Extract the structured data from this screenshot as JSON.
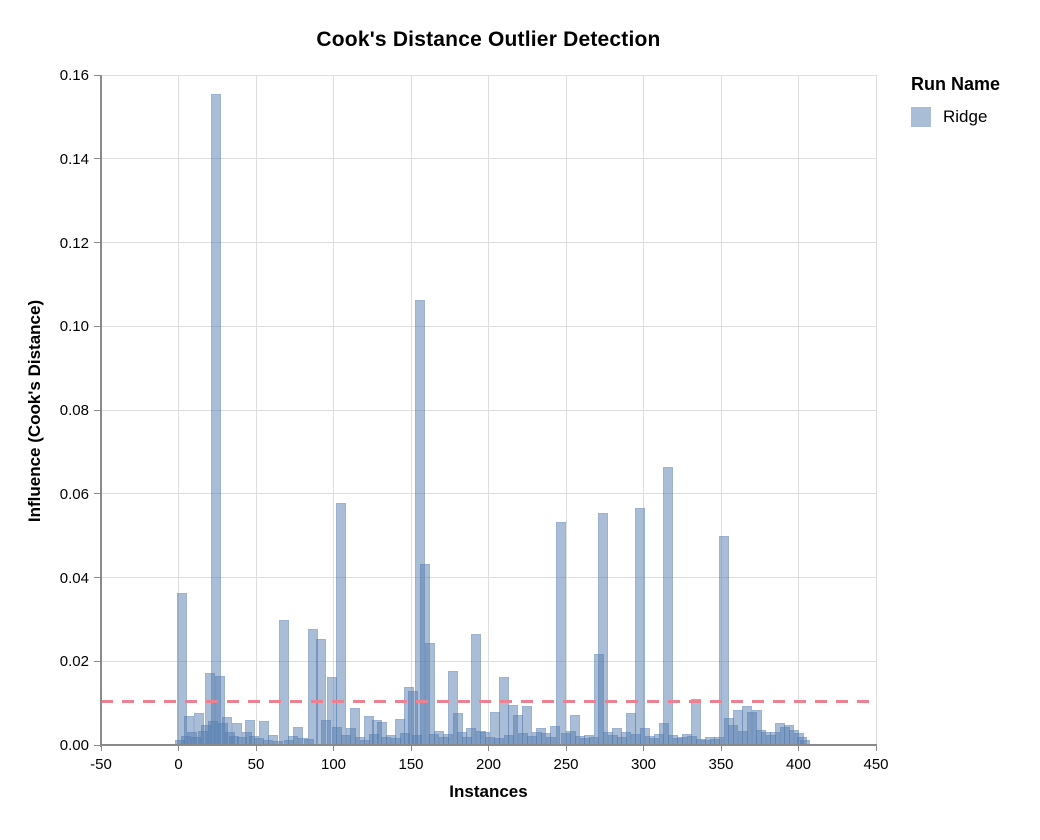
{
  "legend": {
    "title": "Run Name",
    "items": [
      {
        "label": "Ridge",
        "color": "rgba(83,123,173,0.5)"
      }
    ]
  },
  "colors": {
    "bar_fill": "rgba(83,123,173,0.5)",
    "single_bar_appearance": "#a9bcd7",
    "gridline": "#dedede",
    "axis_line": "#8a8a8a",
    "threshold": "#ec8191",
    "text": "#000000"
  },
  "chart_data": {
    "type": "bar",
    "title": "Cook's Distance Outlier Detection",
    "xlabel": "Instances",
    "ylabel": "Influence (Cook's Distance)",
    "xlim": [
      -50,
      450
    ],
    "ylim": [
      0,
      0.16
    ],
    "x_ticks": [
      -50,
      0,
      50,
      100,
      150,
      200,
      250,
      300,
      350,
      400,
      450
    ],
    "x_tick_labels": [
      "-50",
      "0",
      "50",
      "100",
      "150",
      "200",
      "250",
      "300",
      "350",
      "400",
      "450"
    ],
    "y_ticks": [
      0,
      0.02,
      0.04,
      0.06,
      0.08,
      0.1,
      0.12,
      0.14,
      0.16
    ],
    "y_tick_labels": [
      "0.00",
      "0.02",
      "0.04",
      "0.06",
      "0.08",
      "0.10",
      "0.12",
      "0.14",
      "0.16"
    ],
    "grid": true,
    "legend_position": "top-right",
    "threshold_line": {
      "y": 0.0103,
      "color": "#ec8191",
      "style": "dashed"
    },
    "series": [
      {
        "name": "Ridge",
        "color": "rgba(83,123,173,0.5)",
        "points": [
          [
            1,
            0.0012
          ],
          [
            2,
            0.0363
          ],
          [
            5,
            0.0021
          ],
          [
            7,
            0.007
          ],
          [
            9,
            0.003
          ],
          [
            11,
            0.0018
          ],
          [
            13,
            0.0077
          ],
          [
            16,
            0.0034
          ],
          [
            18,
            0.0048
          ],
          [
            20,
            0.0171
          ],
          [
            22,
            0.0058
          ],
          [
            24,
            0.1555
          ],
          [
            27,
            0.0164
          ],
          [
            29,
            0.0052
          ],
          [
            31,
            0.0067
          ],
          [
            33,
            0.003
          ],
          [
            36,
            0.0022
          ],
          [
            38,
            0.0052
          ],
          [
            41,
            0.0018
          ],
          [
            44,
            0.003
          ],
          [
            46,
            0.0059
          ],
          [
            49,
            0.0021
          ],
          [
            52,
            0.0017
          ],
          [
            55,
            0.0058
          ],
          [
            58,
            0.0012
          ],
          [
            61,
            0.0024
          ],
          [
            64,
            0.001
          ],
          [
            68,
            0.0298
          ],
          [
            71,
            0.0013
          ],
          [
            74,
            0.0021
          ],
          [
            77,
            0.0043
          ],
          [
            80,
            0.0017
          ],
          [
            84,
            0.0014
          ],
          [
            87,
            0.0277
          ],
          [
            92,
            0.0253
          ],
          [
            95,
            0.006
          ],
          [
            99,
            0.0163
          ],
          [
            102,
            0.0042
          ],
          [
            105,
            0.0578
          ],
          [
            108,
            0.0023
          ],
          [
            111,
            0.004
          ],
          [
            114,
            0.0088
          ],
          [
            117,
            0.002
          ],
          [
            120,
            0.0013
          ],
          [
            123,
            0.0069
          ],
          [
            126,
            0.0026
          ],
          [
            128,
            0.006
          ],
          [
            131,
            0.0055
          ],
          [
            134,
            0.0018
          ],
          [
            137,
            0.0023
          ],
          [
            140,
            0.0016
          ],
          [
            143,
            0.0062
          ],
          [
            146,
            0.0028
          ],
          [
            149,
            0.0139
          ],
          [
            151,
            0.013
          ],
          [
            154,
            0.0024
          ],
          [
            156,
            0.1062
          ],
          [
            159,
            0.0433
          ],
          [
            162,
            0.0243
          ],
          [
            165,
            0.0026
          ],
          [
            168,
            0.0034
          ],
          [
            171,
            0.002
          ],
          [
            174,
            0.0027
          ],
          [
            177,
            0.0176
          ],
          [
            180,
            0.0077
          ],
          [
            183,
            0.0031
          ],
          [
            186,
            0.0018
          ],
          [
            189,
            0.004
          ],
          [
            192,
            0.0265
          ],
          [
            195,
            0.0034
          ],
          [
            198,
            0.0032
          ],
          [
            201,
            0.002
          ],
          [
            204,
            0.008
          ],
          [
            207,
            0.0016
          ],
          [
            210,
            0.0163
          ],
          [
            213,
            0.0024
          ],
          [
            216,
            0.0095
          ],
          [
            219,
            0.0072
          ],
          [
            222,
            0.0028
          ],
          [
            225,
            0.0094
          ],
          [
            228,
            0.0022
          ],
          [
            231,
            0.0032
          ],
          [
            234,
            0.004
          ],
          [
            237,
            0.0028
          ],
          [
            240,
            0.002
          ],
          [
            243,
            0.0046
          ],
          [
            247,
            0.0533
          ],
          [
            250,
            0.0028
          ],
          [
            253,
            0.0034
          ],
          [
            256,
            0.0071
          ],
          [
            259,
            0.0022
          ],
          [
            262,
            0.0017
          ],
          [
            265,
            0.0024
          ],
          [
            268,
            0.002
          ],
          [
            271,
            0.0217
          ],
          [
            274,
            0.0554
          ],
          [
            277,
            0.003
          ],
          [
            280,
            0.0024
          ],
          [
            283,
            0.004
          ],
          [
            286,
            0.002
          ],
          [
            289,
            0.0032
          ],
          [
            292,
            0.0076
          ],
          [
            295,
            0.0026
          ],
          [
            298,
            0.0566
          ],
          [
            301,
            0.0041
          ],
          [
            304,
            0.0022
          ],
          [
            307,
            0.0016
          ],
          [
            310,
            0.0026
          ],
          [
            313,
            0.0052
          ],
          [
            316,
            0.0664
          ],
          [
            319,
            0.0024
          ],
          [
            322,
            0.0016
          ],
          [
            325,
            0.002
          ],
          [
            328,
            0.0026
          ],
          [
            331,
            0.0022
          ],
          [
            334,
            0.011
          ],
          [
            337,
            0.0015
          ],
          [
            340,
            0.0013
          ],
          [
            343,
            0.0018
          ],
          [
            346,
            0.0015
          ],
          [
            349,
            0.002
          ],
          [
            352,
            0.0499
          ],
          [
            355,
            0.0065
          ],
          [
            358,
            0.0047
          ],
          [
            361,
            0.0083
          ],
          [
            364,
            0.0034
          ],
          [
            367,
            0.0092
          ],
          [
            370,
            0.008
          ],
          [
            373,
            0.0083
          ],
          [
            376,
            0.0037
          ],
          [
            379,
            0.003
          ],
          [
            382,
            0.0025
          ],
          [
            385,
            0.0032
          ],
          [
            388,
            0.0052
          ],
          [
            391,
            0.0044
          ],
          [
            394,
            0.0047
          ],
          [
            397,
            0.0037
          ],
          [
            400,
            0.0028
          ],
          [
            402,
            0.002
          ],
          [
            404,
            0.0012
          ]
        ]
      }
    ]
  }
}
